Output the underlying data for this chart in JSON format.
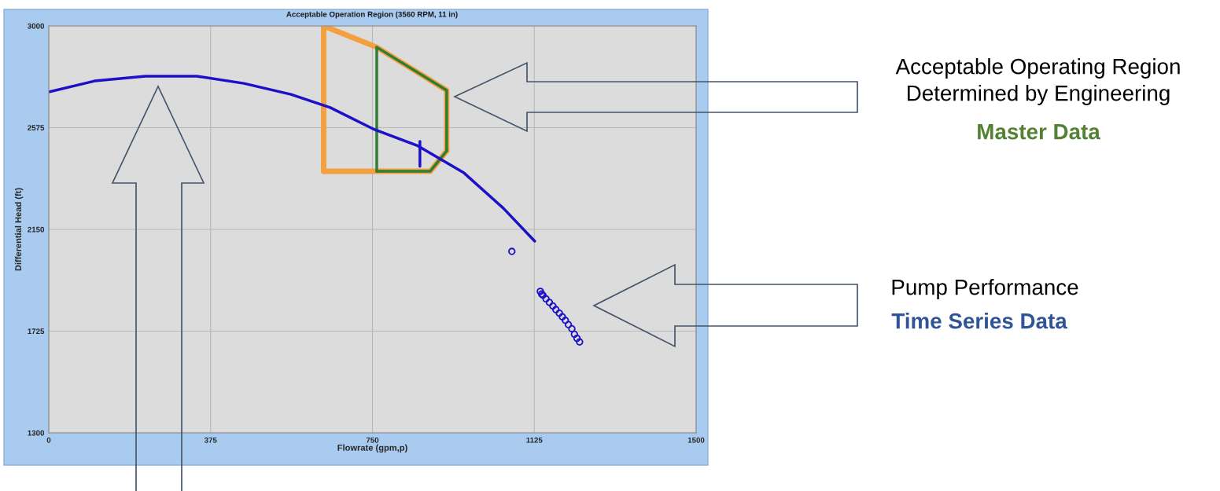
{
  "chart_data": {
    "type": "line",
    "title": "Acceptable Operation Region (3560 RPM, 11 in)",
    "xlabel": "Flowrate (gpm,p)",
    "ylabel": "Differential Head (ft)",
    "xlim": [
      0,
      1500
    ],
    "xticks": [
      0,
      375,
      750,
      1125,
      1500
    ],
    "ylim": [
      1300,
      3000
    ],
    "yticks": [
      1300,
      1725,
      2150,
      2575,
      3000
    ],
    "grid": true,
    "series": [
      {
        "type": "line",
        "color": "#f5a040",
        "x": [
          637,
          637
        ],
        "values": [
          2393,
          3000
        ]
      },
      {
        "type": "line",
        "color": "#f5a040",
        "x": [
          637,
          760,
          922,
          922
        ],
        "values": [
          3000,
          2911,
          2731,
          2478
        ]
      },
      {
        "type": "line",
        "color": "#f5a040",
        "x": [
          637,
          884,
          922
        ],
        "values": [
          2393,
          2393,
          2478
        ]
      },
      {
        "type": "line",
        "color": "#2e7d32",
        "x": [
          760,
          760
        ],
        "values": [
          2393,
          2911
        ]
      },
      {
        "type": "line",
        "color": "#2e7d32",
        "x": [
          760,
          922,
          922
        ],
        "values": [
          2911,
          2731,
          2478
        ]
      },
      {
        "type": "line",
        "color": "#2e7d32",
        "x": [
          760,
          884,
          922
        ],
        "values": [
          2393,
          2393,
          2478
        ]
      },
      {
        "color": "#1c10c8",
        "x": [
          0,
          106,
          224,
          343,
          452,
          561,
          652,
          755,
          853,
          962,
          1053,
          1126
        ],
        "values": [
          2724,
          2770,
          2790,
          2790,
          2760,
          2714,
          2659,
          2567,
          2501,
          2386,
          2239,
          2101
        ]
      },
      {
        "color": "#1c10c8",
        "x": [
          860,
          860
        ],
        "values": [
          2518,
          2413
        ]
      },
      {
        "type": "scatter",
        "color": "#1c10c8",
        "marker": "circle",
        "x": [
          1073,
          1139,
          1142,
          1145,
          1152,
          1160,
          1168,
          1175,
          1183,
          1190,
          1197,
          1204,
          1212,
          1218,
          1224,
          1230
        ],
        "values": [
          2058,
          1891,
          1880,
          1875,
          1860,
          1845,
          1830,
          1815,
          1800,
          1785,
          1770,
          1752,
          1735,
          1712,
          1695,
          1680
        ]
      }
    ],
    "annotations": [
      "Acceptable Operating Region\nDetermined by Engineering",
      "Master Data",
      "Pump Performance",
      "Time Series Data"
    ]
  }
}
